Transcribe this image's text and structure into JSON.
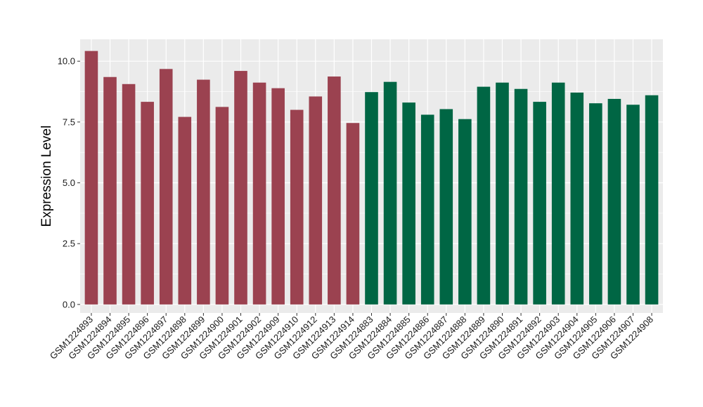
{
  "chart_data": {
    "type": "bar",
    "title": "",
    "xlabel": "",
    "ylabel": "Expression Level",
    "ylim": [
      -0.35,
      10.9
    ],
    "yticks": [
      0.0,
      2.5,
      5.0,
      7.5,
      10.0
    ],
    "ytick_labels": [
      "0.0",
      "2.5",
      "5.0",
      "7.5",
      "10.0"
    ],
    "grid": true,
    "legend": "none",
    "colors": {
      "group_1": "#9B4250",
      "group_2": "#006644",
      "panel": "#EBEBEB",
      "gridline": "#FFFFFF"
    },
    "categories": [
      "GSM1224893",
      "GSM1224894",
      "GSM1224895",
      "GSM1224896",
      "GSM1224897",
      "GSM1224898",
      "GSM1224899",
      "GSM1224900",
      "GSM1224901",
      "GSM1224902",
      "GSM1224909",
      "GSM1224910",
      "GSM1224912",
      "GSM1224913",
      "GSM1224914",
      "GSM1224883",
      "GSM1224884",
      "GSM1224885",
      "GSM1224886",
      "GSM1224887",
      "GSM1224888",
      "GSM1224889",
      "GSM1224890",
      "GSM1224891",
      "GSM1224892",
      "GSM1224903",
      "GSM1224904",
      "GSM1224905",
      "GSM1224906",
      "GSM1224907",
      "GSM1224908"
    ],
    "values": [
      10.42,
      9.35,
      9.06,
      8.33,
      9.68,
      7.71,
      9.24,
      8.12,
      9.6,
      9.12,
      8.89,
      8.0,
      8.55,
      9.37,
      7.46,
      8.73,
      9.15,
      8.3,
      7.8,
      8.03,
      7.62,
      8.95,
      9.12,
      8.86,
      8.33,
      9.12,
      8.71,
      8.27,
      8.45,
      8.21,
      8.6
    ],
    "groups": [
      1,
      1,
      1,
      1,
      1,
      1,
      1,
      1,
      1,
      1,
      1,
      1,
      1,
      1,
      1,
      2,
      2,
      2,
      2,
      2,
      2,
      2,
      2,
      2,
      2,
      2,
      2,
      2,
      2,
      2,
      2
    ]
  }
}
